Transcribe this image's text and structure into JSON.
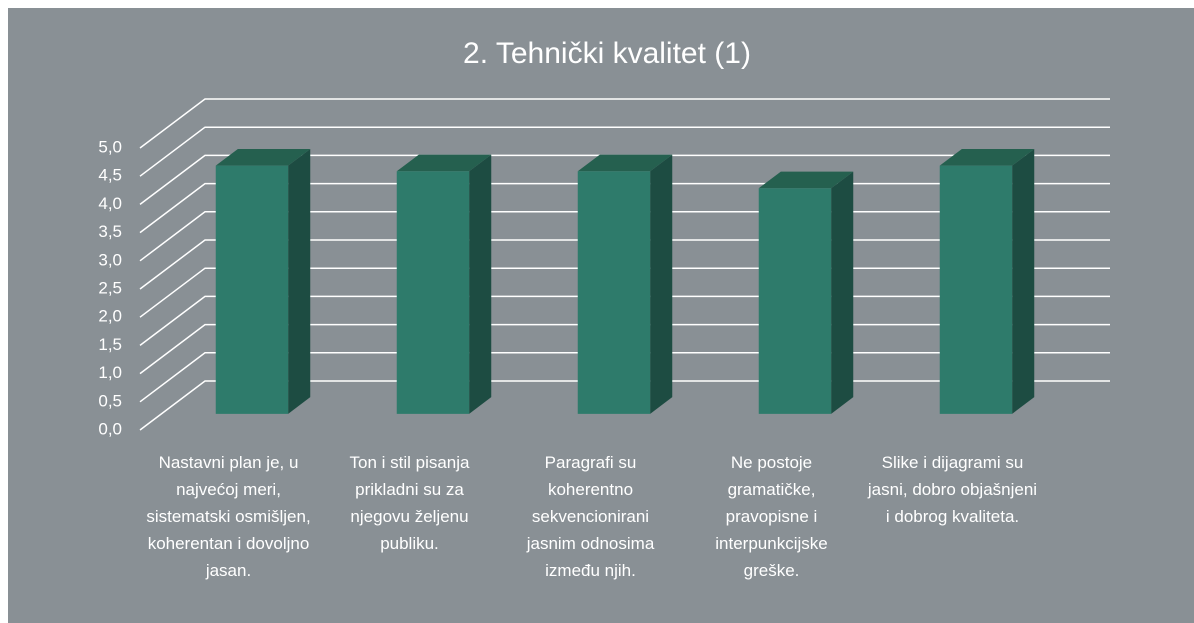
{
  "chart_data": {
    "type": "bar3d",
    "title": "2. Tehnički kvalitet (1)",
    "categories": [
      "Nastavni plan je, u najvećoj meri, sistematski osmišljen, koherentan i dovoljno jasan.",
      "Ton i stil pisanja prikladni su za njegovu željenu publiku.",
      "Paragrafi su koherentno sekvencionirani jasnim odnosima između njih.",
      "Ne postoje gramatičke, pravopisne i interpunkcijske greške.",
      "Slike i dijagrami su jasni, dobro objašnjeni i dobrog kvaliteta."
    ],
    "values": [
      4.4,
      4.3,
      4.3,
      4.0,
      4.4
    ],
    "color": "#2e7b6b",
    "ylim": [
      0,
      5
    ],
    "yticks": [
      {
        "value": 0,
        "label": "0,0"
      },
      {
        "value": 0.5,
        "label": "0,5"
      },
      {
        "value": 1,
        "label": "1,0"
      },
      {
        "value": 1.5,
        "label": "1,5"
      },
      {
        "value": 2,
        "label": "2,0"
      },
      {
        "value": 2.5,
        "label": "2,5"
      },
      {
        "value": 3,
        "label": "3,0"
      },
      {
        "value": 3.5,
        "label": "3,5"
      },
      {
        "value": 4,
        "label": "4,0"
      },
      {
        "value": 4.5,
        "label": "4,5"
      },
      {
        "value": 5,
        "label": "5,0"
      }
    ],
    "grid": true
  }
}
